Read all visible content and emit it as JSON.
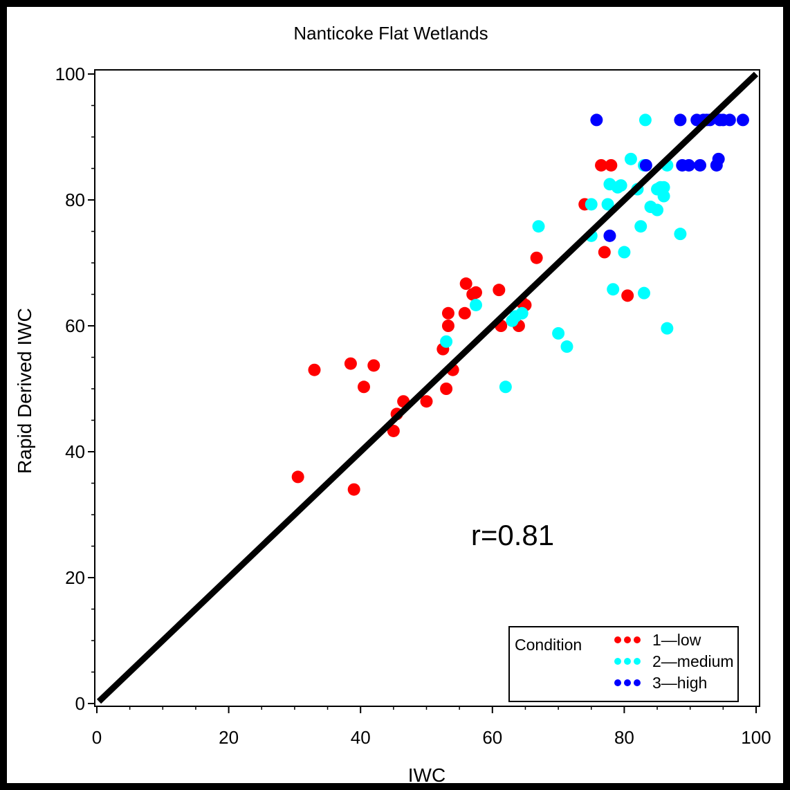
{
  "chart_data": {
    "type": "scatter",
    "title": "Nanticoke Flat Wetlands",
    "xlabel": "IWC",
    "ylabel": "Rapid Derived IWC",
    "xlim": [
      0,
      100
    ],
    "ylim": [
      0,
      100
    ],
    "xticks": [
      "0",
      "20",
      "40",
      "60",
      "80",
      "100"
    ],
    "yticks": [
      "0",
      "20",
      "40",
      "60",
      "80",
      "100"
    ],
    "grid": false,
    "annotation": "r=0.81",
    "reference_line": {
      "from": [
        0,
        0
      ],
      "to": [
        100,
        100
      ],
      "color": "#000000"
    },
    "legend": {
      "title": "Condition",
      "position": "bottom-right"
    },
    "series": [
      {
        "name": "1—low",
        "color": "#FF0000",
        "points": [
          [
            30.5,
            36
          ],
          [
            33,
            53
          ],
          [
            38.5,
            54
          ],
          [
            39,
            34
          ],
          [
            40.5,
            50.3
          ],
          [
            42,
            53.7
          ],
          [
            45,
            43.3
          ],
          [
            45.5,
            46
          ],
          [
            46.5,
            48
          ],
          [
            50,
            48
          ],
          [
            52.5,
            56.3
          ],
          [
            53,
            50
          ],
          [
            53.3,
            60
          ],
          [
            53.3,
            62
          ],
          [
            54,
            53
          ],
          [
            55.8,
            62
          ],
          [
            56,
            66.7
          ],
          [
            57,
            65
          ],
          [
            57.5,
            65.3
          ],
          [
            61,
            65.7
          ],
          [
            61.3,
            60
          ],
          [
            64,
            60
          ],
          [
            64.5,
            63.7
          ],
          [
            65,
            63.3
          ],
          [
            66.7,
            70.8
          ],
          [
            74,
            79.3
          ],
          [
            76.5,
            85.5
          ],
          [
            77,
            71.7
          ],
          [
            78,
            85.5
          ],
          [
            80.5,
            64.8
          ]
        ]
      },
      {
        "name": "2—medium",
        "color": "#00FFFF",
        "points": [
          [
            53,
            57.5
          ],
          [
            57.5,
            63.3
          ],
          [
            62,
            50.3
          ],
          [
            63,
            60.8
          ],
          [
            63.5,
            61.5
          ],
          [
            64.5,
            62
          ],
          [
            67,
            75.8
          ],
          [
            70,
            58.8
          ],
          [
            71.3,
            56.7
          ],
          [
            75,
            79.3
          ],
          [
            75,
            74.3
          ],
          [
            77.5,
            79.3
          ],
          [
            77.8,
            82.5
          ],
          [
            78.3,
            65.8
          ],
          [
            79,
            82
          ],
          [
            79.5,
            82.3
          ],
          [
            80,
            71.7
          ],
          [
            81,
            86.5
          ],
          [
            82,
            81.7
          ],
          [
            82.5,
            75.8
          ],
          [
            83,
            65.2
          ],
          [
            83,
            85.5
          ],
          [
            83.2,
            92.7
          ],
          [
            84,
            78.9
          ],
          [
            85,
            78.4
          ],
          [
            85,
            81.7
          ],
          [
            85.5,
            82
          ],
          [
            86,
            80.6
          ],
          [
            86,
            82
          ],
          [
            86.5,
            59.6
          ],
          [
            86.5,
            85.5
          ],
          [
            88.5,
            74.6
          ]
        ]
      },
      {
        "name": "3—high",
        "color": "#0000FF",
        "points": [
          [
            75.8,
            92.7
          ],
          [
            77.8,
            74.3
          ],
          [
            83.3,
            85.5
          ],
          [
            88.5,
            92.7
          ],
          [
            88.8,
            85.5
          ],
          [
            89.8,
            85.5
          ],
          [
            91,
            92.7
          ],
          [
            91.5,
            85.5
          ],
          [
            92,
            92.7
          ],
          [
            92.5,
            92.7
          ],
          [
            93,
            92.7
          ],
          [
            94,
            85.5
          ],
          [
            94.3,
            86.5
          ],
          [
            94.5,
            92.7
          ],
          [
            95,
            92.7
          ],
          [
            96,
            92.7
          ],
          [
            98,
            92.7
          ]
        ]
      }
    ]
  }
}
